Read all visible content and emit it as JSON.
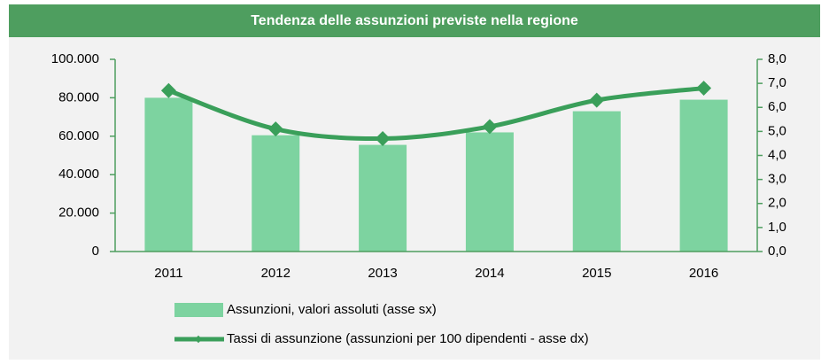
{
  "chart_data": {
    "type": "combo",
    "title": "Tendenza delle assunzioni previste nella regione",
    "categories": [
      "2011",
      "2012",
      "2013",
      "2014",
      "2015",
      "2016"
    ],
    "series": [
      {
        "name": "Assunzioni, valori assoluti (asse sx)",
        "type": "bar",
        "color": "#7dd3a0",
        "values": [
          80000,
          60500,
          55500,
          62000,
          73000,
          79000
        ]
      },
      {
        "name": "Tassi di assunzione (assunzioni per 100 dipendenti - asse dx)",
        "type": "line",
        "axis": "y2",
        "color": "#3a9f5a",
        "values": [
          6.7,
          5.1,
          4.7,
          5.2,
          6.3,
          6.8
        ]
      }
    ],
    "ylim": [
      0,
      100000
    ],
    "yticks": [
      0,
      {
        "value": 20000,
        "label": "20.000"
      },
      {
        "value": 40000,
        "label": "40.000"
      },
      {
        "value": 60000,
        "label": "60.000"
      },
      {
        "value": 80000,
        "label": "80.000"
      },
      {
        "value": 100000,
        "label": "100.000"
      }
    ],
    "y2lim": [
      0,
      8
    ],
    "y2ticks": [
      {
        "value": 0,
        "label": "0,0"
      },
      {
        "value": 1,
        "label": "1,0"
      },
      {
        "value": 2,
        "label": "2,0"
      },
      {
        "value": 3,
        "label": "3,0"
      },
      {
        "value": 4,
        "label": "4,0"
      },
      {
        "value": 5,
        "label": "5,0"
      },
      {
        "value": 6,
        "label": "6,0"
      },
      {
        "value": 7,
        "label": "7,0"
      },
      {
        "value": 8,
        "label": "8,0"
      }
    ],
    "grid": false
  }
}
